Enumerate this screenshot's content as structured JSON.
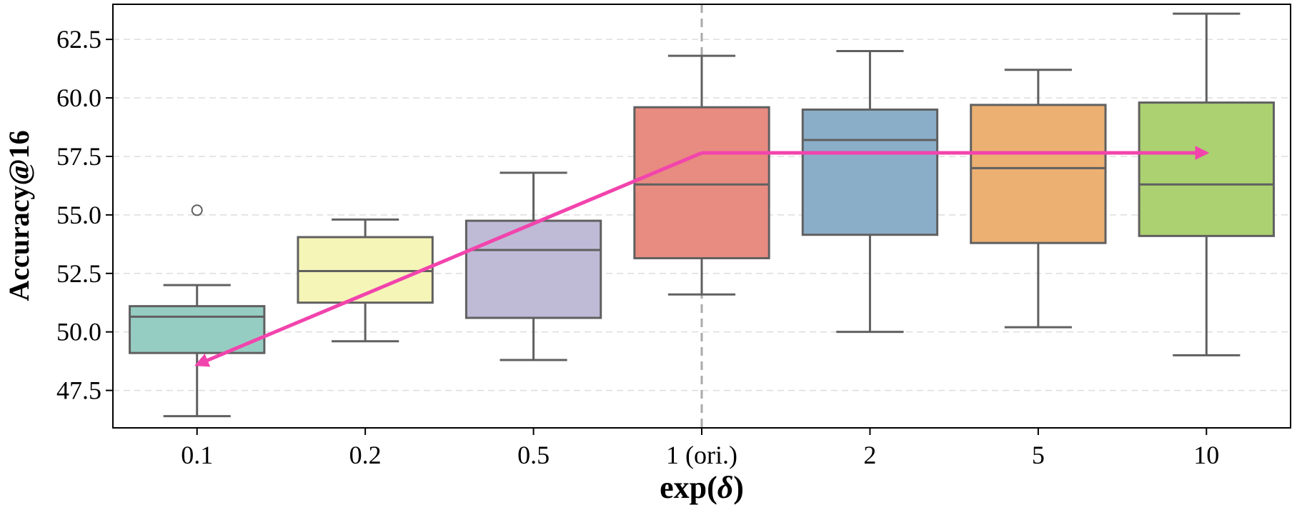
{
  "chart_data": {
    "type": "box",
    "xlabel_prefix": "exp(",
    "xlabel_symbol": "δ",
    "xlabel_suffix": ")",
    "ylabel": "Accuracy@16",
    "ylim": [
      45.9,
      64.0
    ],
    "yticks": [
      47.5,
      50.0,
      52.5,
      55.0,
      57.5,
      60.0,
      62.5
    ],
    "ytick_labels": [
      "47.5",
      "50.0",
      "52.5",
      "55.0",
      "57.5",
      "60.0",
      "62.5"
    ],
    "grid": true,
    "reference_line_category": "1 (ori.)",
    "categories": [
      "0.1",
      "0.2",
      "0.5",
      "1 (ori.)",
      "2",
      "5",
      "10"
    ],
    "boxes": [
      {
        "whisker_low": 46.4,
        "q1": 49.1,
        "median": 50.65,
        "q3": 51.1,
        "whisker_high": 52.0,
        "outliers": [
          55.2
        ],
        "color": "#96cdc2"
      },
      {
        "whisker_low": 49.6,
        "q1": 51.25,
        "median": 52.6,
        "q3": 54.05,
        "whisker_high": 54.8,
        "outliers": [],
        "color": "#f5f5b8"
      },
      {
        "whisker_low": 48.8,
        "q1": 50.6,
        "median": 53.5,
        "q3": 54.75,
        "whisker_high": 56.8,
        "outliers": [],
        "color": "#bfbad6"
      },
      {
        "whisker_low": 51.6,
        "q1": 53.15,
        "median": 56.3,
        "q3": 59.6,
        "whisker_high": 61.8,
        "outliers": [],
        "color": "#e88b80"
      },
      {
        "whisker_low": 50.0,
        "q1": 54.15,
        "median": 58.2,
        "q3": 59.5,
        "whisker_high": 62.0,
        "outliers": [],
        "color": "#8aaec8"
      },
      {
        "whisker_low": 50.2,
        "q1": 53.8,
        "median": 57.0,
        "q3": 59.7,
        "whisker_high": 61.2,
        "outliers": [],
        "color": "#ebb072"
      },
      {
        "whisker_low": 49.0,
        "q1": 54.1,
        "median": 56.3,
        "q3": 59.8,
        "whisker_high": 63.6,
        "outliers": [],
        "color": "#acd170"
      }
    ],
    "trend_arrows": [
      {
        "from_category": "1 (ori.)",
        "from_y": 57.65,
        "to_category": "0.1",
        "to_y": 48.6
      },
      {
        "from_category": "1 (ori.)",
        "from_y": 57.65,
        "to_category": "10",
        "to_y": 57.65
      }
    ],
    "arrow_color": "#f244ad"
  }
}
